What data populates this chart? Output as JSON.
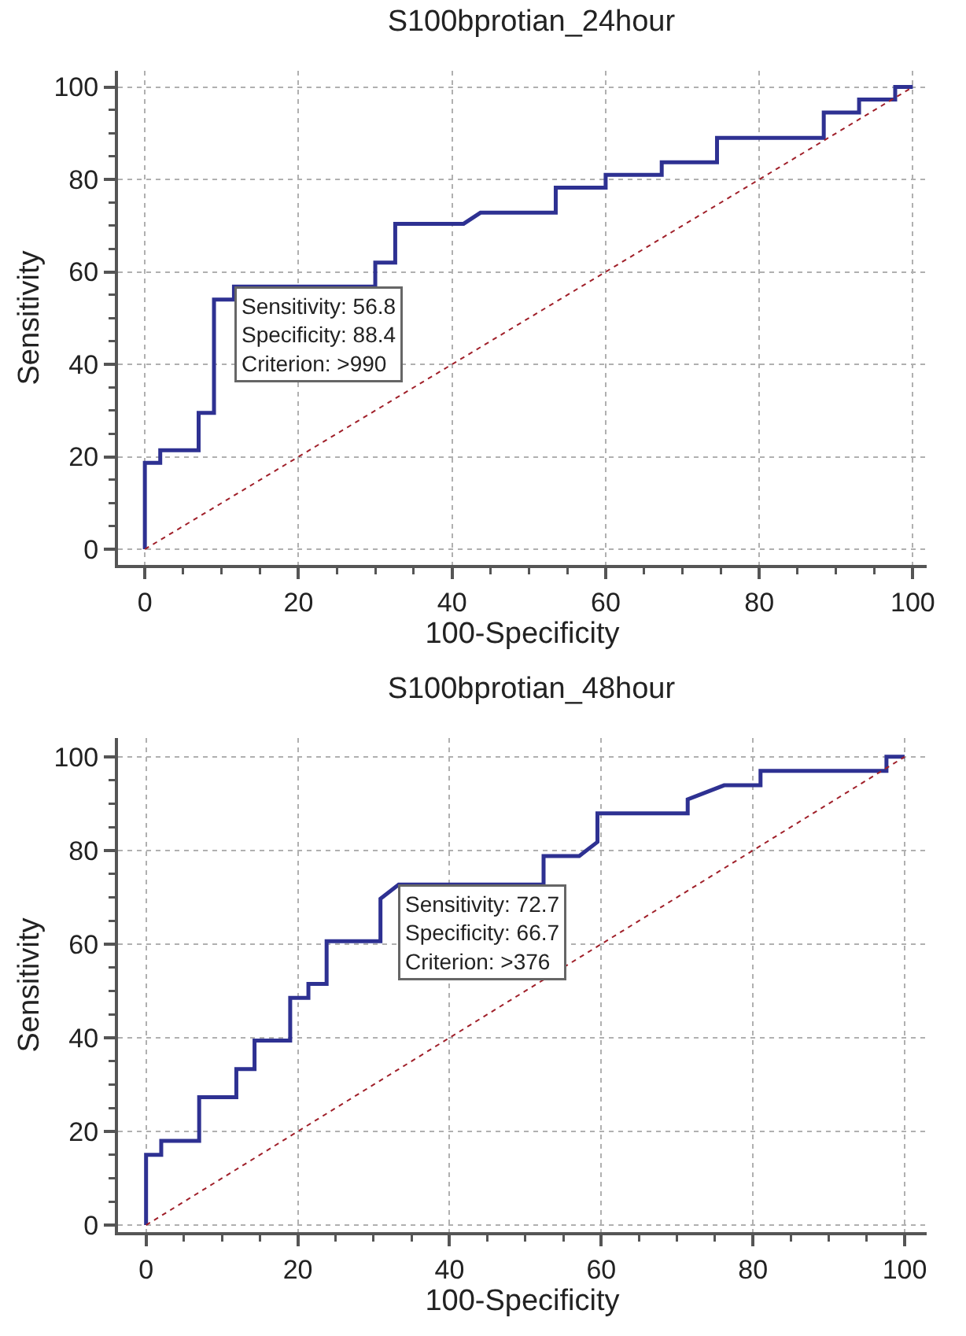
{
  "chart_data": [
    {
      "type": "line",
      "title": "S100bprotian_24hour",
      "xlabel": "100-Specificity",
      "ylabel": "Sensitivity",
      "xlim": [
        -3.5,
        101.8
      ],
      "ylim": [
        -3.4,
        103.5
      ],
      "xticks": [
        0,
        20,
        40,
        60,
        80,
        100
      ],
      "yticks": [
        0,
        20,
        40,
        60,
        80,
        100
      ],
      "grid": true,
      "series": [
        {
          "color": "#2e3192",
          "line_style": "solid",
          "x": [
            0,
            0,
            2,
            2,
            7,
            7,
            9,
            9,
            11.6,
            11.6,
            30,
            30,
            32.6,
            32.6,
            41.5,
            43.7,
            53.5,
            53.5,
            60,
            60,
            67.3,
            67.3,
            74.5,
            74.5,
            88.4,
            88.4,
            93,
            93,
            97.7,
            97.7,
            100
          ],
          "values": [
            0,
            18.7,
            18.7,
            21.4,
            21.4,
            29.5,
            29.5,
            54,
            54,
            56.8,
            56.8,
            62,
            62,
            70.4,
            70.4,
            72.8,
            72.8,
            78.2,
            78.2,
            81,
            81,
            83.7,
            83.7,
            89,
            89,
            94.5,
            94.5,
            97.3,
            97.3,
            100,
            100
          ]
        },
        {
          "color": "#a0202a",
          "line_style": "dotted",
          "x": [
            0,
            100
          ],
          "values": [
            0,
            100
          ]
        }
      ],
      "annotations": [
        {
          "text": "Sensitivity: 56.8\nSpecificity: 88.4\nCriterion: >990",
          "x": 11.6,
          "y": 56.8
        }
      ]
    },
    {
      "type": "line",
      "title": "S100bprotian_48hour",
      "xlabel": "100-Specificity",
      "ylabel": "Sensitivity",
      "xlim": [
        -3.7,
        102.9
      ],
      "ylim": [
        -1.5,
        104
      ],
      "xticks": [
        0,
        20,
        40,
        60,
        80,
        100
      ],
      "yticks": [
        0,
        20,
        40,
        60,
        80,
        100
      ],
      "grid": true,
      "series": [
        {
          "color": "#2e3192",
          "line_style": "solid",
          "x": [
            0,
            0,
            2,
            2,
            7,
            7,
            11.9,
            11.9,
            14.3,
            14.3,
            19,
            19,
            21.4,
            21.4,
            23.8,
            23.8,
            30.9,
            30.9,
            33.3,
            52.4,
            52.4,
            57.1,
            59.5,
            59.5,
            71.4,
            71.4,
            76.2,
            81,
            81,
            97.6,
            97.6,
            100
          ],
          "values": [
            0,
            15,
            15,
            18,
            18,
            27.3,
            27.3,
            33.3,
            33.3,
            39.4,
            39.4,
            48.5,
            48.5,
            51.5,
            51.5,
            60.6,
            60.6,
            69.7,
            72.7,
            72.7,
            78.8,
            78.8,
            81.8,
            87.9,
            87.9,
            90.9,
            93.9,
            93.9,
            97,
            97,
            100,
            100
          ]
        },
        {
          "color": "#a0202a",
          "line_style": "dotted",
          "x": [
            0,
            100
          ],
          "values": [
            0,
            100
          ]
        }
      ],
      "annotations": [
        {
          "text": "Sensitivity: 72.7\nSpecificity: 66.7\nCriterion: >376",
          "x": 33.3,
          "y": 72.7
        }
      ]
    }
  ]
}
